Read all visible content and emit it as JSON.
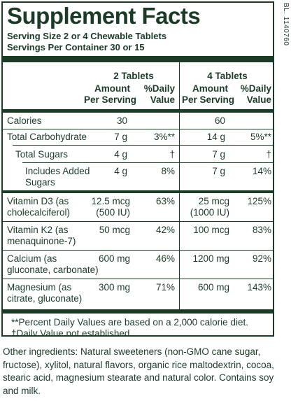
{
  "side_code": "BL. 1140760",
  "title": "Supplement Facts",
  "serving_size": "Serving Size 2 or 4 Chewable Tablets",
  "servings_per_container": "Servings Per Container 30 or 15",
  "columns": {
    "group1": "2 Tablets",
    "group2": "4 Tablets",
    "amount_line1": "Amount",
    "amount_line2": "Per Serving",
    "dv_line1": "%Daily",
    "dv_line2": "Value"
  },
  "rows": [
    {
      "name1": "Calories",
      "name2": "",
      "a1": "30",
      "d1": "",
      "a2": "60",
      "d2": ""
    },
    {
      "name1": "Total Carbohydrate",
      "name2": "",
      "a1": "7 g",
      "d1": "3%**",
      "a2": "14 g",
      "d2": "5%**"
    },
    {
      "name1": "Total Sugars",
      "name2": "",
      "a1": "4 g",
      "d1": "†",
      "a2": "7 g",
      "d2": "†"
    },
    {
      "name1": "Includes Added",
      "name2": "Sugars",
      "a1": "4 g",
      "d1": "8%",
      "a2": "7 g",
      "d2": "14%"
    },
    {
      "name1": "Vitamin D3 (as",
      "name2": "cholecalciferol)",
      "a1": "12.5 mcg",
      "a1b": "(500 IU)",
      "d1": "63%",
      "a2": "25 mcg",
      "a2b": "(1000 IU)",
      "d2": "125%"
    },
    {
      "name1": "Vitamin K2 (as",
      "name2": "menaquinone-7)",
      "a1": "50 mcg",
      "d1": "42%",
      "a2": "100 mcg",
      "d2": "83%"
    },
    {
      "name1": "Calcium (as",
      "name2": "gluconate, carbonate)",
      "a1": "600 mg",
      "d1": "46%",
      "a2": "1200 mg",
      "d2": "92%"
    },
    {
      "name1": "Magnesium (as",
      "name2": "citrate, gluconate)",
      "a1": "300 mg",
      "d1": "71%",
      "a2": "600 mg",
      "d2": "143%"
    }
  ],
  "footnote1": "**Percent Daily Values are based on a 2,000 calorie diet.",
  "footnote2": "†Daily Value not established.",
  "ingredients": "Other ingredients: Natural sweeteners (non-GMO cane sugar, fructose), xylitol, natural flavors, organic rice maltodextrin, cocoa, stearic acid, magnesium stearate and natural color. Contains soy and milk."
}
